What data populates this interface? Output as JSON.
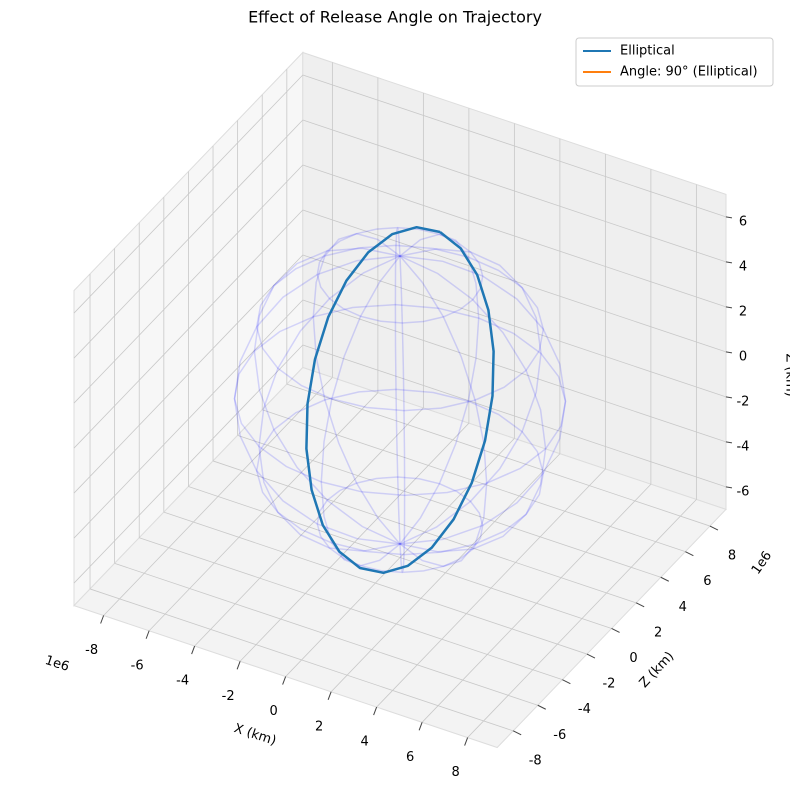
{
  "chart_data": {
    "type": "line3d",
    "title": "Effect of Release Angle on Trajectory",
    "series": [
      {
        "name": "Elliptical",
        "color": "#1f77b4",
        "x": [
          0.852,
          0.452,
          0.02,
          -0.413,
          -0.817,
          -1.166,
          -1.435,
          -1.606,
          -1.669,
          -1.617,
          -1.456,
          -1.194,
          -0.852,
          -0.452,
          -0.02,
          0.413,
          0.817,
          1.166,
          1.435,
          1.606,
          1.669,
          1.617,
          1.456,
          1.194,
          0.852
        ],
        "y": [
          1.676,
          0.517,
          -0.678,
          -1.825,
          -2.849,
          -3.678,
          -4.257,
          -4.546,
          -4.525,
          -4.195,
          -3.58,
          -2.721,
          -1.676,
          -0.517,
          0.678,
          1.825,
          2.849,
          3.678,
          4.257,
          4.546,
          4.525,
          4.195,
          3.58,
          2.721,
          1.676
        ],
        "z": [
          6.8,
          7.538,
          7.763,
          7.458,
          6.645,
          5.379,
          3.747,
          1.859,
          -0.155,
          -2.158,
          -4.015,
          -5.598,
          -6.8,
          -7.538,
          -7.763,
          -7.458,
          -6.645,
          -5.379,
          -3.747,
          -1.859,
          0.155,
          2.158,
          4.015,
          5.598,
          6.8
        ]
      },
      {
        "name": "Angle: 90° (Elliptical)",
        "color": "#ff7f0e",
        "x": [],
        "y": [],
        "z": []
      }
    ],
    "sphere": {
      "radius": 6.4,
      "color": "#0000ff"
    },
    "xlabel": "X (km)",
    "ylabel": "Z (km)",
    "zlabel": "Z (km)",
    "x_offset": "1e6",
    "y_offset": "1e6",
    "xlim": [
      -9.3,
      9.3
    ],
    "ylim": [
      -9.3,
      9.3
    ],
    "zlim": [
      -7,
      7
    ],
    "xticks": [
      -8,
      -6,
      -4,
      -2,
      0,
      2,
      4,
      6,
      8
    ],
    "yticks": [
      -8,
      -6,
      -4,
      -2,
      0,
      2,
      4,
      6,
      8
    ],
    "zticks": [
      -6,
      -4,
      -2,
      0,
      2,
      4,
      6
    ],
    "grid": true,
    "legend": "upper right"
  }
}
